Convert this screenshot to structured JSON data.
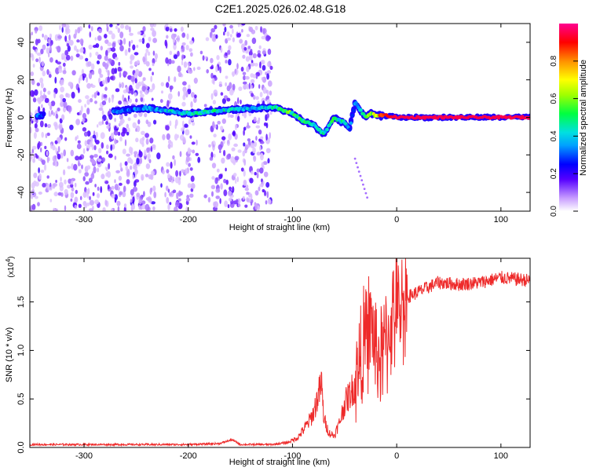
{
  "figure": {
    "title": "C2E1.2025.026.02.48.G18"
  },
  "chart_data": [
    {
      "type": "heatmap",
      "title": "C2E1.2025.026.02.48.G18",
      "xlabel": "Height of straight line (km)",
      "ylabel": "Frequency (Hz)",
      "xlim": [
        -352,
        128
      ],
      "ylim": [
        -50,
        50
      ],
      "xticks": [
        -300,
        -200,
        -100,
        0,
        100
      ],
      "yticks": [
        -40,
        -20,
        0,
        20,
        40
      ],
      "colorbar": {
        "label": "Normalized spectral amplitude",
        "range": [
          0.0,
          1.0
        ],
        "ticks": [
          0.0,
          0.2,
          0.4,
          0.6,
          0.8
        ],
        "colormap": [
          "#ffffff",
          "#b070ff",
          "#0000ff",
          "#00c8ff",
          "#00ff00",
          "#ffff00",
          "#ff7000",
          "#ff0000",
          "#ff0080"
        ]
      },
      "ridge_trace": {
        "x": [
          -345,
          -270,
          -240,
          -200,
          -160,
          -130,
          -115,
          -100,
          -90,
          -80,
          -70,
          -60,
          -50,
          -45,
          -40,
          -35,
          -30,
          -25,
          -20,
          -10,
          0,
          20,
          60,
          100,
          128
        ],
        "y": [
          1,
          3,
          5,
          2,
          4,
          5,
          5,
          2,
          -2,
          -4,
          -9,
          0,
          -3,
          -6,
          8,
          4,
          0,
          2,
          1,
          1,
          0,
          0,
          0,
          0,
          0
        ],
        "amplitude": [
          0.3,
          0.3,
          0.35,
          0.45,
          0.45,
          0.4,
          0.5,
          0.55,
          0.5,
          0.5,
          0.45,
          0.5,
          0.45,
          0.3,
          0.35,
          0.4,
          0.55,
          0.6,
          0.75,
          0.9,
          0.95,
          0.95,
          0.95,
          0.95,
          0.95
        ]
      },
      "scatter_region_x": [
        -352,
        -120
      ]
    },
    {
      "type": "line",
      "xlabel": "Height of straight line (km)",
      "ylabel": "SNR (10 * v/v)",
      "y_multiplier_label": "(x10",
      "y_multiplier_exp": "4",
      "xlim": [
        -352,
        128
      ],
      "ylim": [
        0,
        1.95
      ],
      "xticks": [
        -300,
        -200,
        -100,
        0,
        100
      ],
      "yticks": [
        0.0,
        0.5,
        1.0,
        1.5
      ],
      "ytick_labels": [
        "0.0",
        "0.5",
        "1.0",
        "1.5"
      ],
      "series": [
        {
          "color": "#ee2a2a",
          "x": [
            -352,
            -300,
            -250,
            -200,
            -170,
            -158,
            -150,
            -120,
            -105,
            -95,
            -85,
            -80,
            -75,
            -72,
            -70,
            -65,
            -60,
            -55,
            -50,
            -45,
            -40,
            -35,
            -30,
            -25,
            -20,
            -15,
            -10,
            -5,
            0,
            10,
            20,
            30,
            40,
            60,
            80,
            100,
            128
          ],
          "y": [
            0.03,
            0.03,
            0.03,
            0.03,
            0.04,
            0.08,
            0.03,
            0.03,
            0.05,
            0.1,
            0.25,
            0.35,
            0.55,
            0.65,
            0.3,
            0.15,
            0.12,
            0.25,
            0.45,
            0.55,
            0.65,
            0.9,
            1.1,
            1.3,
            1.0,
            0.9,
            1.1,
            1.3,
            1.4,
            1.55,
            1.6,
            1.65,
            1.7,
            1.68,
            1.7,
            1.75,
            1.72
          ]
        }
      ]
    }
  ]
}
